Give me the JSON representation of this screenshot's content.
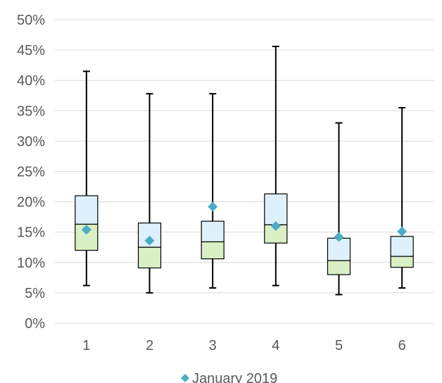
{
  "chart_data": {
    "type": "boxplot",
    "title": "",
    "xlabel": "",
    "ylabel": "",
    "categories": [
      "1",
      "2",
      "3",
      "4",
      "5",
      "6"
    ],
    "ylim": [
      0,
      50
    ],
    "yticks": [
      "0%",
      "5%",
      "10%",
      "15%",
      "20%",
      "25%",
      "30%",
      "35%",
      "40%",
      "45%",
      "50%"
    ],
    "grid": true,
    "legend": {
      "placement": "bottom",
      "entries": [
        {
          "name": "January 2019",
          "marker": "diamond",
          "color": "#4BACC6"
        }
      ]
    },
    "colors": {
      "upper_box": "#DDF0FB",
      "lower_box": "#D9EFC4",
      "box_edge": "#000000",
      "whisker": "#000000",
      "marker": "#4BACC6",
      "gridline": "#D9D9D9"
    },
    "boxes": [
      {
        "category": "1",
        "min": 6.2,
        "q1": 12.0,
        "median": 16.3,
        "q3": 21.0,
        "max": 41.5
      },
      {
        "category": "2",
        "min": 5.0,
        "q1": 9.1,
        "median": 12.5,
        "q3": 16.5,
        "max": 37.8
      },
      {
        "category": "3",
        "min": 5.8,
        "q1": 10.6,
        "median": 13.4,
        "q3": 16.8,
        "max": 37.8
      },
      {
        "category": "4",
        "min": 6.2,
        "q1": 13.2,
        "median": 16.2,
        "q3": 21.3,
        "max": 45.6
      },
      {
        "category": "5",
        "min": 4.7,
        "q1": 8.0,
        "median": 10.3,
        "q3": 14.0,
        "max": 33.0
      },
      {
        "category": "6",
        "min": 5.8,
        "q1": 9.2,
        "median": 11.0,
        "q3": 14.3,
        "max": 35.5
      }
    ],
    "series": [
      {
        "name": "January 2019",
        "values": [
          15.4,
          13.6,
          19.2,
          16.0,
          14.2,
          15.1
        ]
      }
    ]
  }
}
